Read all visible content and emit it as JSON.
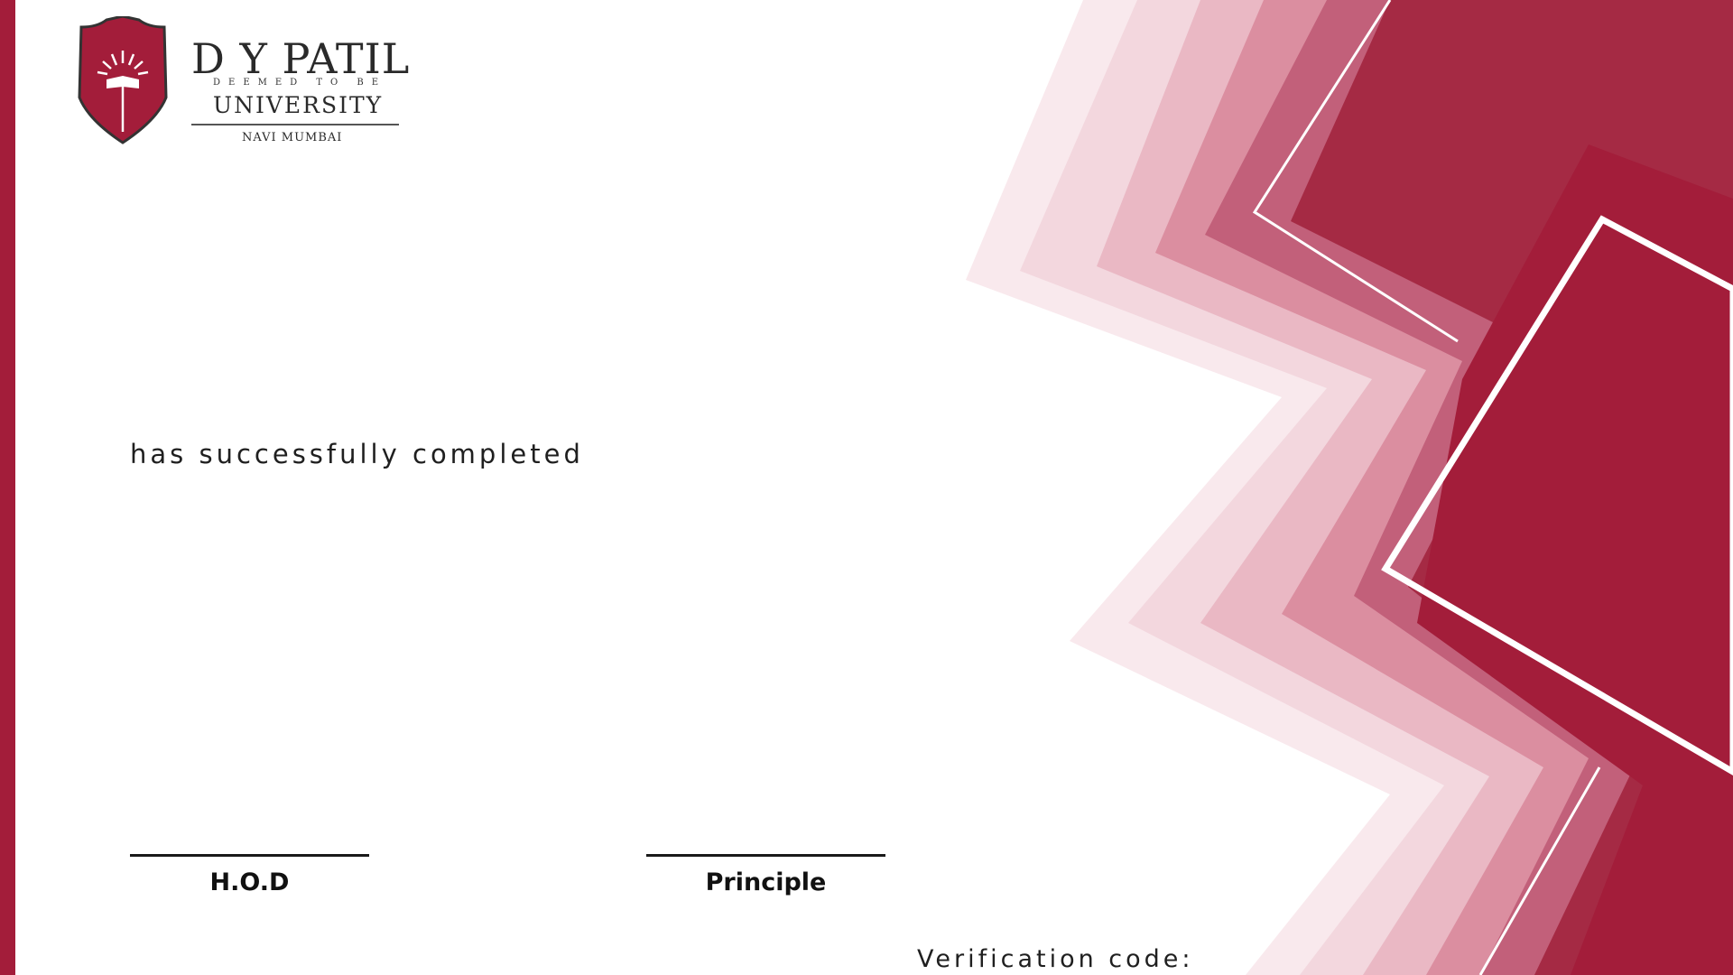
{
  "logo": {
    "title": "D Y PATIL",
    "deemed": "DEEMED TO BE",
    "university": "UNIVERSITY",
    "location": "NAVI MUMBAI"
  },
  "certificate": {
    "completion_text": "has successfully completed",
    "verification_label": "Verification code:"
  },
  "signatures": [
    {
      "label": "H.O.D"
    },
    {
      "label": "Principle"
    }
  ],
  "colors": {
    "accent": "#a31d3a",
    "accent_light": "#d98a9c",
    "accent_faint": "#f4dde2"
  }
}
